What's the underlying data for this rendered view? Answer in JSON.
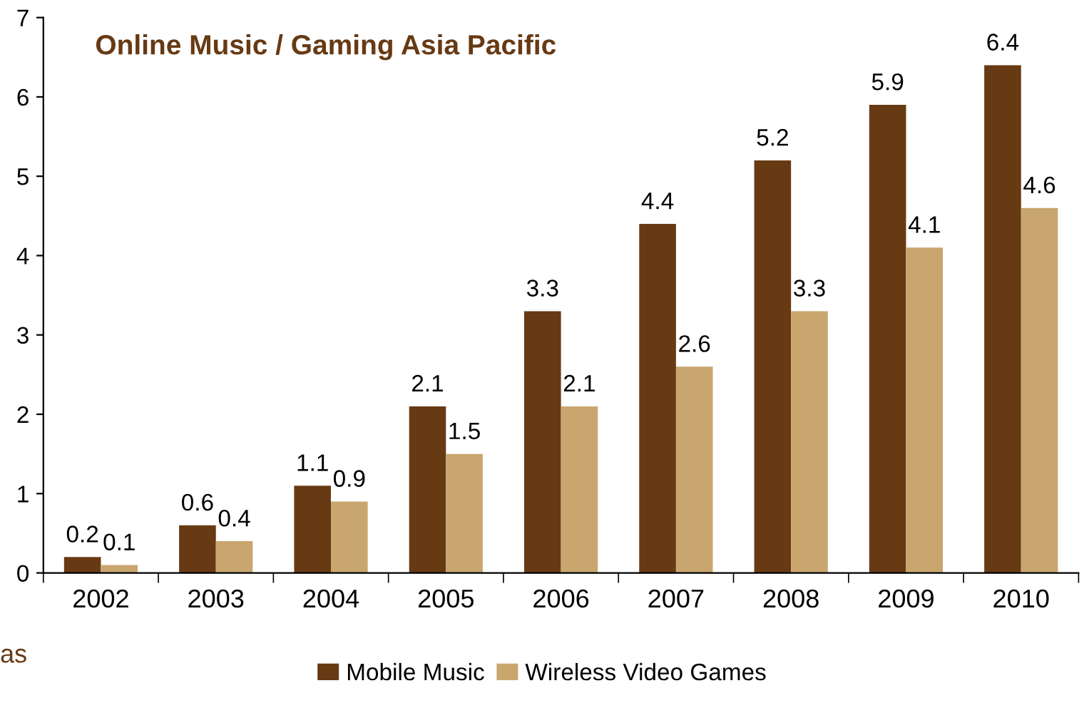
{
  "chart_data": {
    "type": "bar",
    "title": "Online Music / Gaming Asia Pacific",
    "categories": [
      "2002",
      "2003",
      "2004",
      "2005",
      "2006",
      "2007",
      "2008",
      "2009",
      "2010"
    ],
    "series": [
      {
        "name": "Mobile Music",
        "color": "#673a14",
        "values": [
          0.2,
          0.6,
          1.1,
          2.1,
          3.3,
          4.4,
          5.2,
          5.9,
          6.4
        ]
      },
      {
        "name": "Wireless Video Games",
        "color": "#c8a66e",
        "values": [
          0.1,
          0.4,
          0.9,
          1.5,
          2.1,
          2.6,
          3.3,
          4.1,
          4.6
        ]
      }
    ],
    "ylim": [
      0,
      7
    ],
    "yticks": [
      0,
      1,
      2,
      3,
      4,
      5,
      6,
      7
    ],
    "grid": false,
    "legend": "bottom",
    "data_labels": true,
    "annotations": [
      "as"
    ]
  }
}
